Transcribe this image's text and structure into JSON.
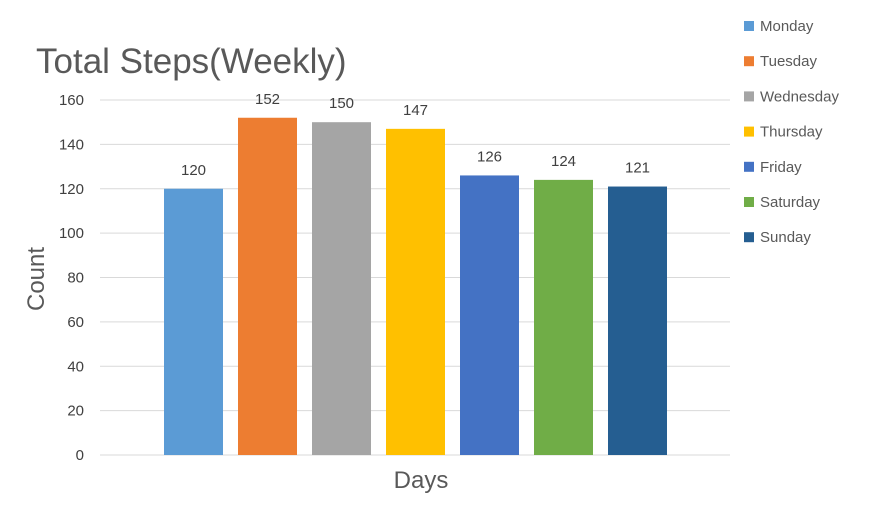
{
  "chart_data": {
    "type": "bar",
    "title": "Total Steps(Weekly)",
    "xlabel": "Days",
    "ylabel": "Count",
    "ylim": [
      0,
      160
    ],
    "yticks": [
      0,
      20,
      40,
      60,
      80,
      100,
      120,
      140,
      160
    ],
    "grid": true,
    "legend_position": "right",
    "data_labels": true,
    "series": [
      {
        "name": "Monday",
        "value": 120,
        "color": "#5b9bd5"
      },
      {
        "name": "Tuesday",
        "value": 152,
        "color": "#ed7d31"
      },
      {
        "name": "Wednesday",
        "value": 150,
        "color": "#a5a5a5"
      },
      {
        "name": "Thursday",
        "value": 147,
        "color": "#ffc000"
      },
      {
        "name": "Friday",
        "value": 126,
        "color": "#4472c4"
      },
      {
        "name": "Saturday",
        "value": 124,
        "color": "#70ad47"
      },
      {
        "name": "Sunday",
        "value": 121,
        "color": "#255e91"
      }
    ]
  }
}
